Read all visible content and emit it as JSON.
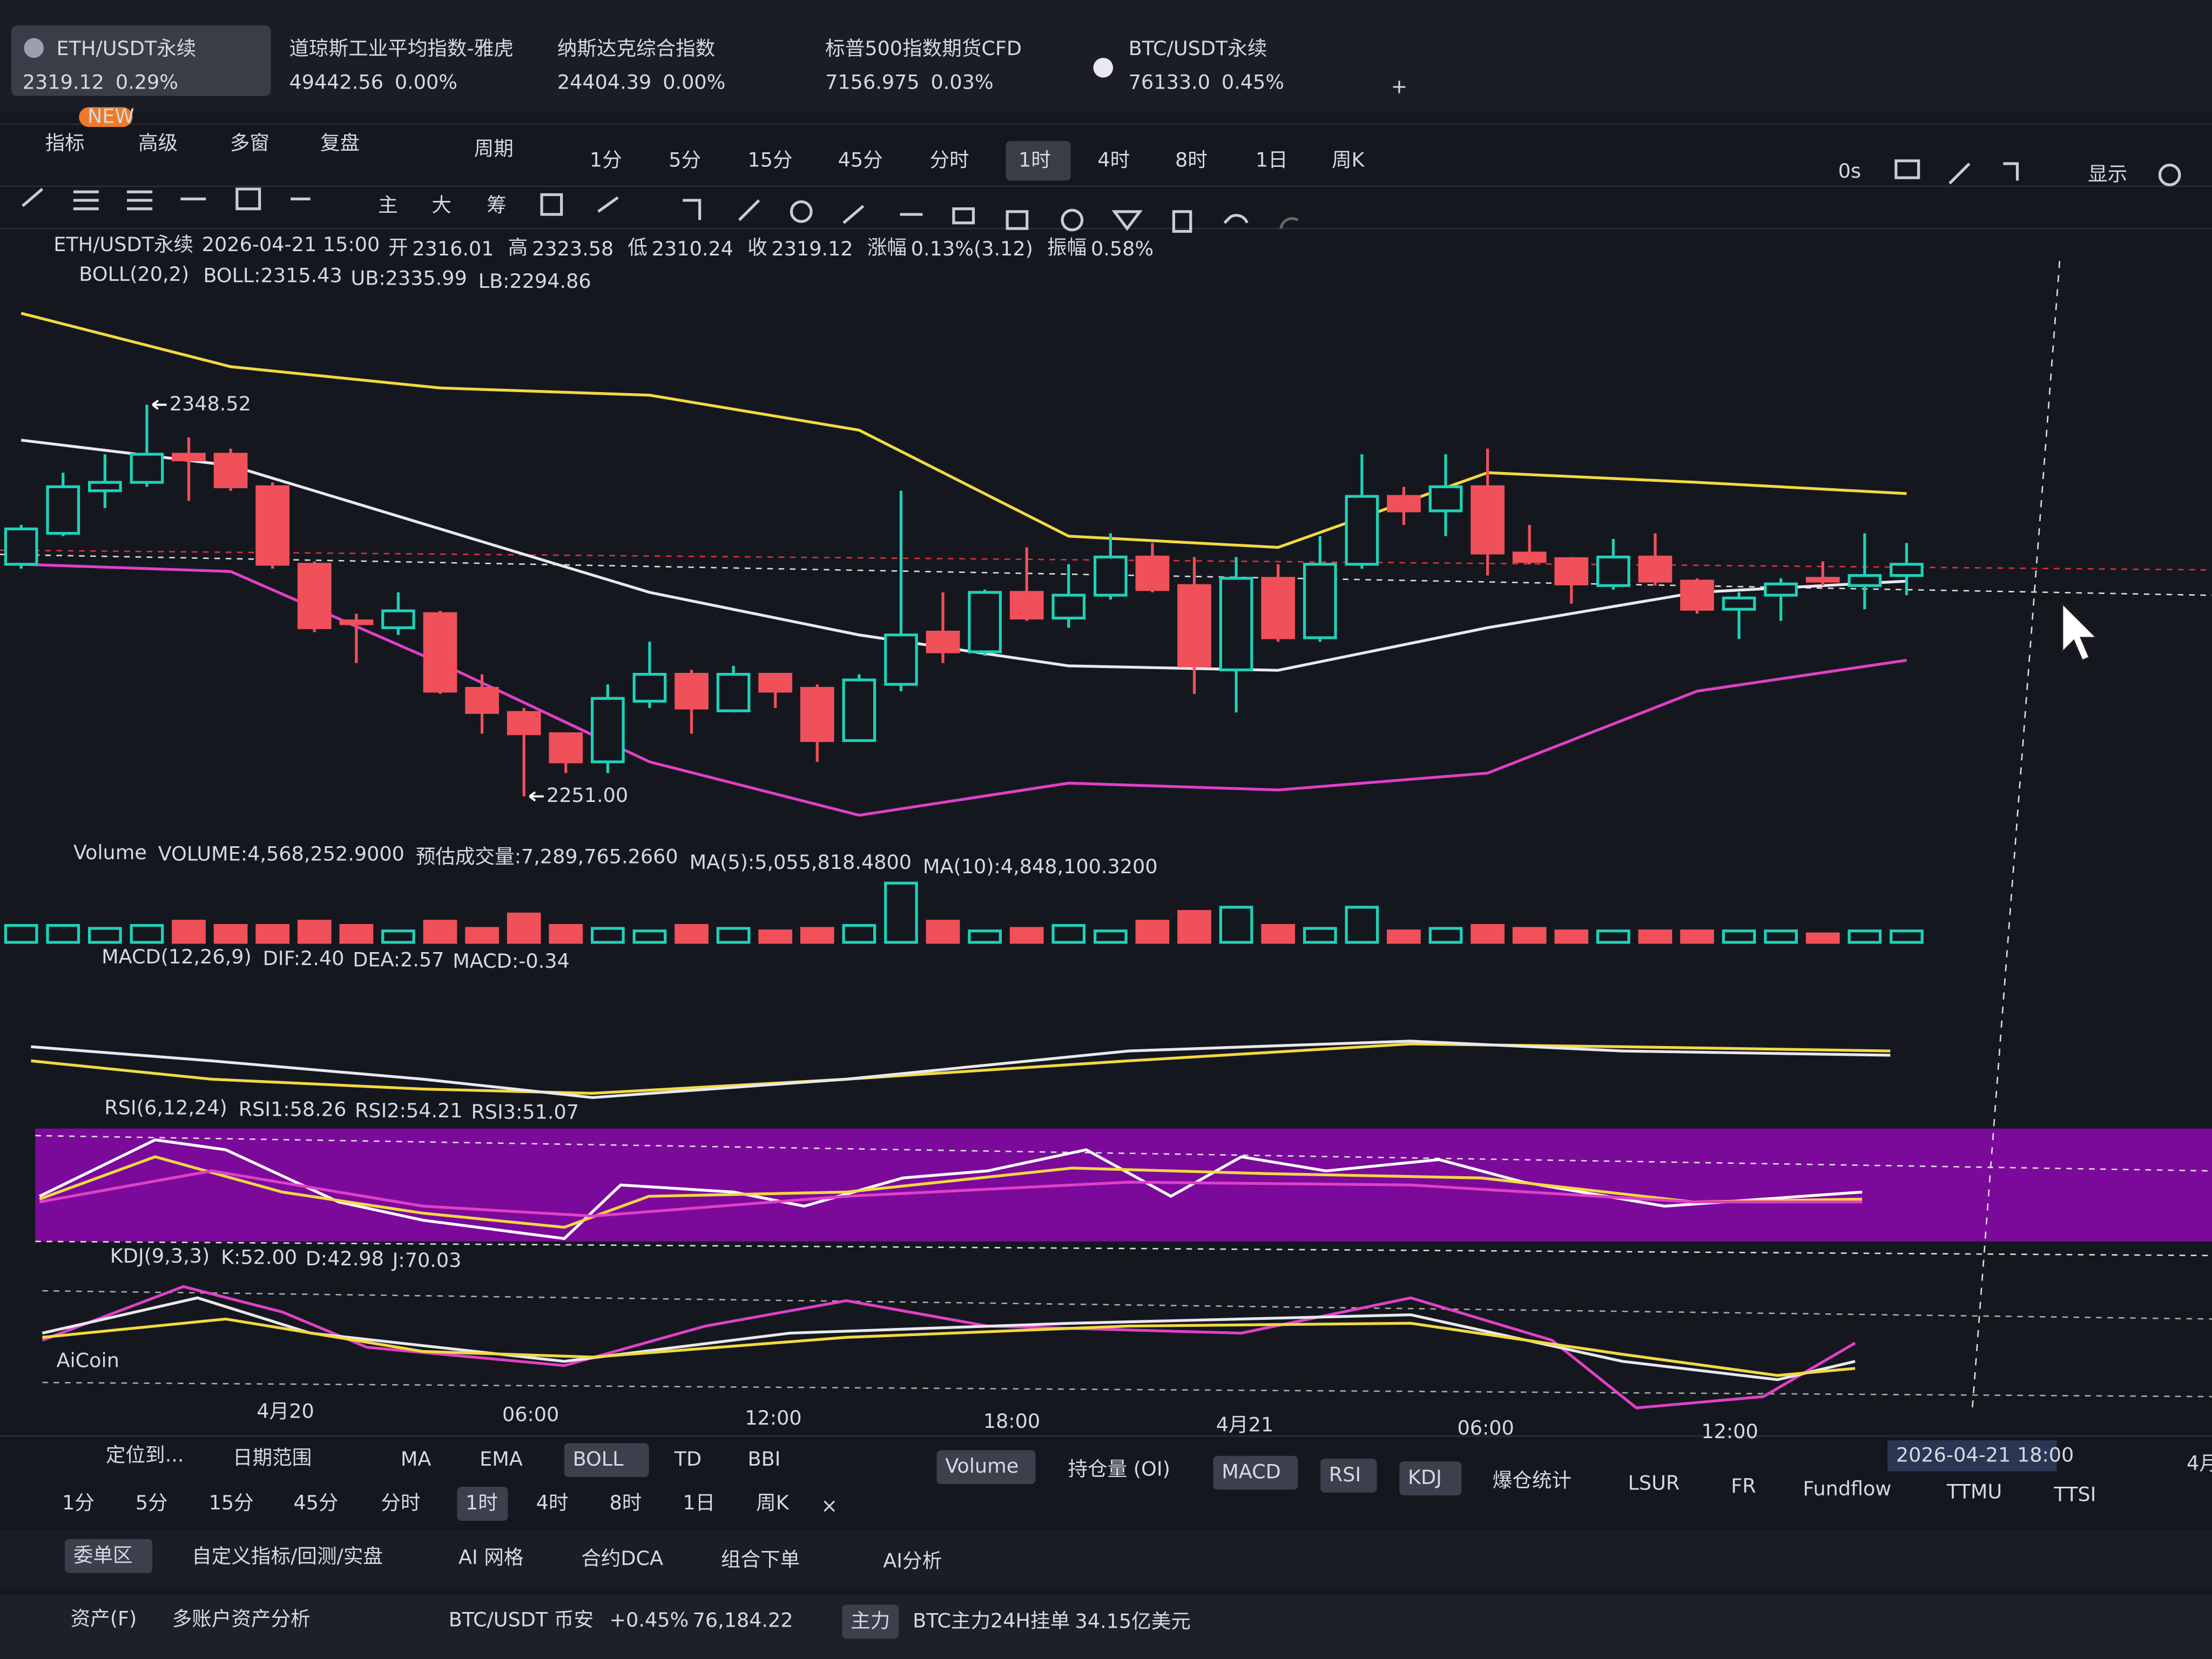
{
  "tickers": [
    {
      "name": "ETH/USDT永续",
      "price": "2319.12",
      "change": "0.29%"
    },
    {
      "name": "道琼斯工业平均指数-雅虎",
      "price": "49442.56",
      "change": "0.00%"
    },
    {
      "name": "纳斯达克综合指数",
      "price": "24404.39",
      "change": "0.00%"
    },
    {
      "name": "标普500指数期货CFD",
      "price": "7156.975",
      "change": "0.03%"
    },
    {
      "name": "BTC/USDT永续",
      "price": "76133.0",
      "change": "0.45%"
    }
  ],
  "add_tab": "+",
  "toolbar": {
    "left": [
      "指标",
      "高级",
      "多窗",
      "复盘"
    ],
    "badge": "NEW",
    "period": "周期",
    "intervals": [
      "1分",
      "5分",
      "15分",
      "45分",
      "分时",
      "1时",
      "4时",
      "8时",
      "1日",
      "周K"
    ],
    "timer": "0s",
    "display": "显示"
  },
  "draw_tools": [
    "主",
    "大",
    "筹"
  ],
  "info": {
    "symbol": "ETH/USDT永续",
    "time": "2026-04-21 15:00",
    "fields": [
      {
        "label": "开",
        "value": "2316.01"
      },
      {
        "label": "高",
        "value": "2323.58"
      },
      {
        "label": "低",
        "value": "2310.24"
      },
      {
        "label": "收",
        "value": "2319.12"
      },
      {
        "label": "涨幅",
        "value": "0.13%(3.12)"
      },
      {
        "label": "振幅",
        "value": "0.58%"
      }
    ]
  },
  "boll": {
    "name": "BOLL(20,2)",
    "mid": "BOLL:2315.43",
    "ub": "UB:2335.99",
    "lb": "LB:2294.86"
  },
  "volume_info": {
    "name": "Volume",
    "volume": "VOLUME:4,568,252.9000",
    "estimate": "预估成交量:7,289,765.2660",
    "ma5": "MA(5):5,055,818.4800",
    "ma10": "MA(10):4,848,100.3200"
  },
  "macd_info": {
    "name": "MACD(12,26,9)",
    "dif": "DIF:2.40",
    "dea": "DEA:2.57",
    "macd": "MACD:-0.34"
  },
  "rsi_info": {
    "name": "RSI(6,12,24)",
    "rsi1": "RSI1:58.26",
    "rsi2": "RSI2:54.21",
    "rsi3": "RSI3:51.07"
  },
  "kdj_info": {
    "name": "KDJ(9,3,3)",
    "k": "K:52.00",
    "d": "D:42.98",
    "j": "J:70.03"
  },
  "watermark": "AiCoin",
  "time_axis": [
    "4月20",
    "06:00",
    "12:00",
    "18:00",
    "4月21",
    "06:00",
    "12:00"
  ],
  "crosshair_time": "2026-04-21 18:00",
  "edge_label": "4月",
  "chart_data": {
    "type": "candlestick",
    "ohlc": [
      [
        2308.8,
        2318.6,
        2307.7,
        2317.6
      ],
      [
        2316.5,
        2331.6,
        2315.8,
        2328.1
      ],
      [
        2327.1,
        2336.2,
        2322.8,
        2329.2
      ],
      [
        2329.2,
        2348.52,
        2328.1,
        2336.2
      ],
      [
        2336.2,
        2340.4,
        2324.6,
        2334.8
      ],
      [
        2336.2,
        2337.6,
        2327.1,
        2328.1
      ],
      [
        2328.1,
        2329.2,
        2307.7,
        2308.8
      ],
      [
        2308.8,
        2309.5,
        2291.9,
        2293.0
      ],
      [
        2294.7,
        2296.5,
        2284.2,
        2294.0
      ],
      [
        2293.0,
        2301.8,
        2291.2,
        2297.2
      ],
      [
        2296.5,
        2297.2,
        2276.5,
        2277.2
      ],
      [
        2277.9,
        2281.4,
        2266.6,
        2271.9
      ],
      [
        2271.9,
        2273.0,
        2251.0,
        2266.6
      ],
      [
        2266.6,
        2266.6,
        2256.8,
        2259.6
      ],
      [
        2259.6,
        2278.9,
        2256.8,
        2275.4
      ],
      [
        2274.7,
        2289.5,
        2273.0,
        2281.4
      ],
      [
        2281.4,
        2282.5,
        2266.6,
        2273.0
      ],
      [
        2272.3,
        2283.5,
        2271.9,
        2281.4
      ],
      [
        2281.4,
        2281.4,
        2273.0,
        2277.2
      ],
      [
        2277.9,
        2278.9,
        2259.6,
        2264.9
      ],
      [
        2264.9,
        2281.4,
        2264.9,
        2280.0
      ],
      [
        2278.9,
        2327.1,
        2277.2,
        2291.2
      ],
      [
        2291.9,
        2301.8,
        2284.2,
        2287.0
      ],
      [
        2287.0,
        2302.5,
        2286.0,
        2301.8
      ],
      [
        2301.8,
        2313.0,
        2294.7,
        2295.4
      ],
      [
        2295.4,
        2308.8,
        2293.0,
        2301.1
      ],
      [
        2301.1,
        2316.5,
        2300.0,
        2310.6
      ],
      [
        2310.6,
        2314.1,
        2301.8,
        2302.5
      ],
      [
        2303.5,
        2310.6,
        2276.5,
        2283.5
      ],
      [
        2282.5,
        2310.6,
        2271.9,
        2305.3
      ],
      [
        2305.3,
        2308.8,
        2289.5,
        2290.5
      ],
      [
        2290.5,
        2315.8,
        2289.5,
        2308.8
      ],
      [
        2308.8,
        2336.2,
        2307.7,
        2325.7
      ],
      [
        2325.7,
        2328.1,
        2318.6,
        2322.1
      ],
      [
        2322.1,
        2336.2,
        2315.8,
        2328.1
      ],
      [
        2328.1,
        2337.6,
        2306.0,
        2311.6
      ],
      [
        2311.6,
        2318.6,
        2308.8,
        2309.5
      ],
      [
        2310.2,
        2310.6,
        2299.0,
        2303.9
      ],
      [
        2303.5,
        2315.1,
        2302.5,
        2310.6
      ],
      [
        2310.6,
        2316.5,
        2303.5,
        2304.6
      ],
      [
        2304.6,
        2305.3,
        2296.5,
        2297.6
      ],
      [
        2297.6,
        2301.8,
        2290.2,
        2300.4
      ],
      [
        2301.1,
        2305.3,
        2294.7,
        2303.9
      ],
      [
        2305.3,
        2309.5,
        2303.5,
        2304.6
      ],
      [
        2303.5,
        2316.5,
        2297.6,
        2306.0
      ],
      [
        2306.0,
        2314.1,
        2301.1,
        2308.8
      ]
    ],
    "ylim": [
      2228,
      2365
    ],
    "annotations": [
      {
        "value": 2348.52,
        "label": "2348.52"
      },
      {
        "value": 2251.0,
        "label": "2251.00"
      }
    ],
    "boll_lines": [
      {
        "color": "#f3d942",
        "x": [
          0,
          5,
          10,
          15,
          20,
          25,
          30,
          35,
          40,
          45
        ],
        "values": [
          2371.3,
          2358.0,
          2352.7,
          2350.9,
          2342.2,
          2315.8,
          2313.0,
          2331.6,
          2329.2,
          2326.4
        ]
      },
      {
        "color": "#e8e8ee",
        "x": [
          0,
          5,
          10,
          15,
          20,
          25,
          30,
          35,
          40,
          45
        ],
        "values": [
          2339.7,
          2333.4,
          2317.6,
          2301.8,
          2291.2,
          2283.5,
          2282.4,
          2293.0,
          2301.8,
          2304.6
        ]
      },
      {
        "color": "#e040c8",
        "x": [
          0,
          5,
          10,
          15,
          20,
          25,
          30,
          35,
          40,
          45
        ],
        "values": [
          2308.8,
          2307.0,
          2284.2,
          2259.6,
          2246.3,
          2254.3,
          2252.6,
          2256.8,
          2277.2,
          2284.9
        ]
      }
    ],
    "volume": {
      "values": [
        4000000,
        4000000,
        3300000,
        4000000,
        5000000,
        4000000,
        4000000,
        5000000,
        4000000,
        2700000,
        5000000,
        3300000,
        6700000,
        4000000,
        3300000,
        2700000,
        4000000,
        3300000,
        2700000,
        3300000,
        4000000,
        14000000,
        5000000,
        2700000,
        3300000,
        4000000,
        2700000,
        5000000,
        7300000,
        8300000,
        4000000,
        3300000,
        8300000,
        2700000,
        3300000,
        4000000,
        3300000,
        2700000,
        2700000,
        2700000,
        2700000,
        2700000,
        2700000,
        2000000,
        2700000,
        2700000
      ],
      "ylim": [
        0,
        15000000
      ]
    },
    "up_color": "#1fd1b8",
    "down_color": "#f0505a"
  },
  "bottom": {
    "row1_left": [
      "定位到...",
      "日期范围"
    ],
    "row1_ind": [
      "MA",
      "EMA",
      "BOLL",
      "TD",
      "BBI"
    ],
    "row1_sub": [
      "Volume",
      "持仓量 (OI)",
      "MACD",
      "RSI",
      "KDJ",
      "爆仓统计",
      "LSUR",
      "FR",
      "Fundflow",
      "TTMU",
      "TTSI"
    ],
    "row2": [
      "1分",
      "5分",
      "15分",
      "45分",
      "分时",
      "1时",
      "4时",
      "8时",
      "1日",
      "周K"
    ],
    "close": "×",
    "row3": [
      "委单区",
      "自定义指标/回测/实盘",
      "AI 网格",
      "合约DCA",
      "组合下单",
      "AI分析"
    ],
    "row4": {
      "asset": "资产(F)",
      "multi": "多账户资产分析",
      "pair": "BTC/USDT 币安",
      "change": "+0.45%",
      "price": "76,184.22",
      "tag": "主力",
      "order_label": "BTC主力24H挂单",
      "order_value": "34.15亿美元"
    }
  }
}
